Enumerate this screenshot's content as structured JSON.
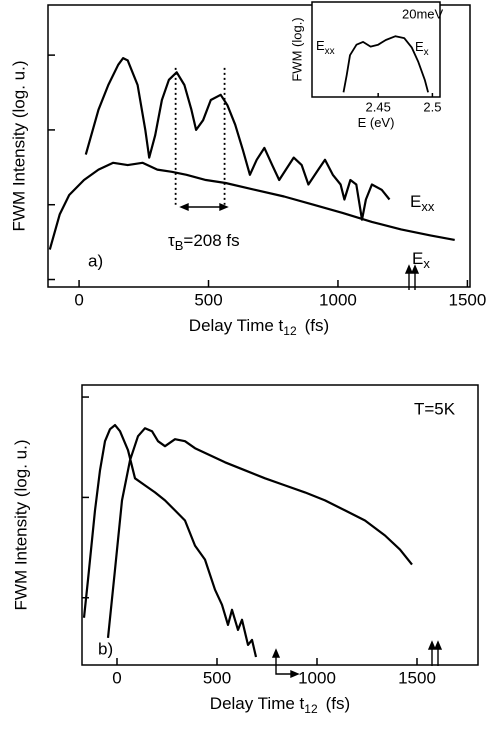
{
  "chart_data": [
    {
      "type": "line",
      "x_label": "Delay Time t",
      "x_label_sub": "12",
      "x_label_end": "(fs)",
      "y_label": "FWM Intensity (log. u.)",
      "panel_label": "a)",
      "xlim": [
        -120,
        1510
      ],
      "xticks": [
        0,
        500,
        1000,
        1500
      ],
      "ylim": [
        -0.1,
        3.67
      ],
      "yticks": [
        0,
        1,
        2,
        3
      ],
      "vlines": [
        373,
        562
      ],
      "annotation": {
        "text": "τ",
        "sub": "B",
        "rest": "=208 fs"
      },
      "series": [
        {
          "label_main": "E",
          "label_sub": "xx",
          "color": "#000",
          "x": [
            26,
            75,
            113,
            151,
            170,
            188,
            226,
            256,
            271,
            294,
            320,
            347,
            377,
            407,
            434,
            452,
            479,
            509,
            547,
            573,
            603,
            633,
            660,
            686,
            716,
            746,
            773,
            799,
            829,
            860,
            886,
            924,
            950,
            980,
            1010,
            1025,
            1048,
            1071,
            1093,
            1108,
            1131,
            1169,
            1199
          ],
          "values": [
            1.67,
            2.27,
            2.6,
            2.87,
            2.96,
            2.93,
            2.6,
            2.0,
            1.63,
            1.93,
            2.4,
            2.67,
            2.77,
            2.6,
            2.27,
            2.0,
            2.13,
            2.4,
            2.47,
            2.33,
            2.07,
            1.73,
            1.4,
            1.6,
            1.76,
            1.53,
            1.33,
            1.47,
            1.63,
            1.53,
            1.27,
            1.47,
            1.6,
            1.4,
            1.27,
            1.07,
            1.33,
            1.27,
            0.8,
            1.07,
            1.27,
            1.2,
            1.07
          ]
        },
        {
          "label_main": "E",
          "label_sub": "x",
          "color": "#000",
          "x": [
            -113,
            -75,
            -38,
            19,
            75,
            132,
            188,
            245,
            302,
            358,
            415,
            490,
            566,
            679,
            792,
            905,
            1018,
            1131,
            1244,
            1357,
            1451
          ],
          "values": [
            0.4,
            0.87,
            1.13,
            1.33,
            1.47,
            1.56,
            1.53,
            1.56,
            1.47,
            1.44,
            1.4,
            1.33,
            1.29,
            1.2,
            1.11,
            1.0,
            0.89,
            0.77,
            0.67,
            0.59,
            0.53
          ]
        }
      ]
    },
    {
      "type": "line",
      "x_label": "E (eV)",
      "y_label": "FWM (log.)",
      "xlim": [
        2.389,
        2.507
      ],
      "xticks": [
        2.45,
        2.5
      ],
      "ylim": [
        0,
        1
      ],
      "annotation": {
        "text": "20meV"
      },
      "series": [
        {
          "color": "#000",
          "x": [
            2.418,
            2.421,
            2.424,
            2.43,
            2.436,
            2.443,
            2.45,
            2.457,
            2.466,
            2.474,
            2.481,
            2.487,
            2.493,
            2.496
          ],
          "values": [
            0.05,
            0.23,
            0.44,
            0.55,
            0.58,
            0.53,
            0.55,
            0.6,
            0.64,
            0.62,
            0.52,
            0.37,
            0.18,
            0.05
          ]
        }
      ],
      "peak_labels": [
        {
          "main": "E",
          "sub": "xx"
        },
        {
          "main": "E",
          "sub": "x"
        }
      ]
    },
    {
      "type": "line",
      "x_label": "Delay Time t",
      "x_label_sub": "12",
      "x_label_end": "(fs)",
      "y_label": "FWM Intensity (log. u.)",
      "panel_label": "b)",
      "xlim": [
        -175,
        1805
      ],
      "xticks": [
        0,
        500,
        1000,
        1500
      ],
      "ylim": [
        -0.67,
        2.12
      ],
      "yticks": [
        0,
        1,
        2
      ],
      "annotation": {
        "text": "T=5K"
      },
      "series": [
        {
          "color": "#000",
          "x": [
            -165,
            -145,
            -110,
            -85,
            -60,
            -35,
            -10,
            15,
            55,
            90,
            140,
            190,
            240,
            290,
            340,
            390,
            440,
            490,
            525,
            555,
            575,
            605,
            625,
            655,
            675,
            695
          ],
          "values": [
            -0.2,
            0.18,
            0.87,
            1.27,
            1.56,
            1.68,
            1.72,
            1.66,
            1.47,
            1.19,
            1.12,
            1.05,
            0.97,
            0.87,
            0.77,
            0.52,
            0.38,
            0.08,
            -0.07,
            -0.27,
            -0.12,
            -0.32,
            -0.22,
            -0.47,
            -0.42,
            -0.59
          ]
        },
        {
          "color": "#000",
          "x": [
            -45,
            -10,
            25,
            65,
            105,
            140,
            175,
            205,
            240,
            290,
            340,
            390,
            465,
            540,
            640,
            740,
            840,
            940,
            1040,
            1140,
            1240,
            1340,
            1415,
            1475
          ],
          "values": [
            -0.4,
            0.28,
            0.97,
            1.37,
            1.61,
            1.69,
            1.66,
            1.56,
            1.51,
            1.58,
            1.56,
            1.49,
            1.42,
            1.35,
            1.27,
            1.19,
            1.12,
            1.05,
            0.97,
            0.87,
            0.77,
            0.62,
            0.48,
            0.33
          ]
        }
      ]
    }
  ]
}
